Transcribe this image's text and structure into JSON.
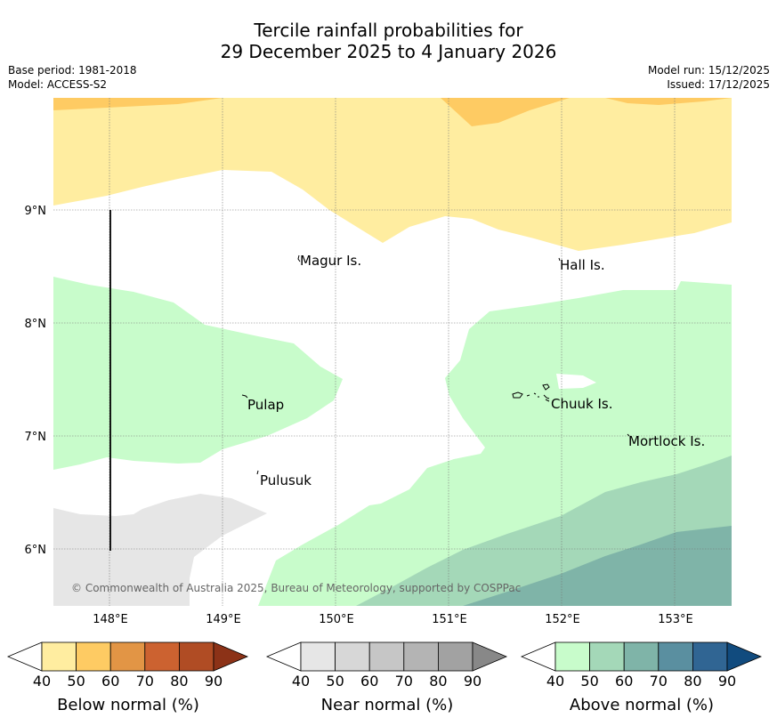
{
  "header": {
    "title_line1": "Tercile rainfall probabilities for",
    "title_line2": "29 December 2025 to 4 January 2026",
    "base_period": "Base period: 1981-2018",
    "model": "Model: ACCESS-S2",
    "model_run": "Model run: 15/12/2025",
    "issued": "Issued: 17/12/2025"
  },
  "map": {
    "lat_labels": [
      "9°N",
      "8°N",
      "7°N",
      "6°N"
    ],
    "lon_labels": [
      "148°E",
      "149°E",
      "150°E",
      "151°E",
      "152°E",
      "153°E"
    ],
    "places": [
      "Magur Is.",
      "Hall Is.",
      "Pulap",
      "Chuuk Is.",
      "Mortlock Is.",
      "Pulusuk"
    ],
    "copyright": "© Commonwealth of Australia 2025, Bureau of Meteorology, supported by COSPPac"
  },
  "legend": {
    "below": {
      "label": "Below normal (%)",
      "ticks": [
        "40",
        "50",
        "60",
        "70",
        "80",
        "90"
      ],
      "colors": [
        "#ffffff",
        "#ffeda0",
        "#fecb63",
        "#e29545",
        "#cc6230",
        "#b04c24",
        "#8c3217"
      ]
    },
    "near": {
      "label": "Near normal (%)",
      "ticks": [
        "40",
        "50",
        "60",
        "70",
        "80",
        "90"
      ],
      "colors": [
        "#ffffff",
        "#e6e6e6",
        "#d7d7d7",
        "#c6c6c6",
        "#b4b4b4",
        "#a2a2a2",
        "#888888"
      ]
    },
    "above": {
      "label": "Above normal (%)",
      "ticks": [
        "40",
        "50",
        "60",
        "70",
        "80",
        "90"
      ],
      "colors": [
        "#ffffff",
        "#c8fccb",
        "#a4d8b8",
        "#7fb4a8",
        "#5a8fa0",
        "#306593",
        "#114b7e"
      ]
    }
  }
}
